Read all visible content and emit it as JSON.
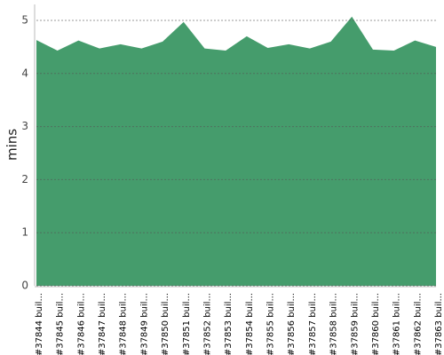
{
  "chart_data": {
    "type": "area",
    "y_label": "mins",
    "categories": [
      "#37844 buil...",
      "#37845 buil...",
      "#37846 buil...",
      "#37847 buil...",
      "#37848 buil...",
      "#37849 buil...",
      "#37850 buil...",
      "#37851 buil...",
      "#37852 buil...",
      "#37853 buil...",
      "#37854 buil...",
      "#37855 buil...",
      "#37856 buil...",
      "#37857 buil...",
      "#37858 buil...",
      "#37859 buil...",
      "#37860 buil...",
      "#37861 buil...",
      "#37862 buil...",
      "#37863 buil..."
    ],
    "values": [
      4.63,
      4.43,
      4.62,
      4.47,
      4.55,
      4.47,
      4.6,
      4.97,
      4.47,
      4.43,
      4.7,
      4.48,
      4.55,
      4.47,
      4.6,
      5.07,
      4.45,
      4.43,
      4.62,
      4.5
    ],
    "color": "#459c6c",
    "ylim": [
      0,
      5.3
    ],
    "yticks": [
      0,
      1,
      2,
      3,
      4,
      5
    ],
    "grid": true
  }
}
